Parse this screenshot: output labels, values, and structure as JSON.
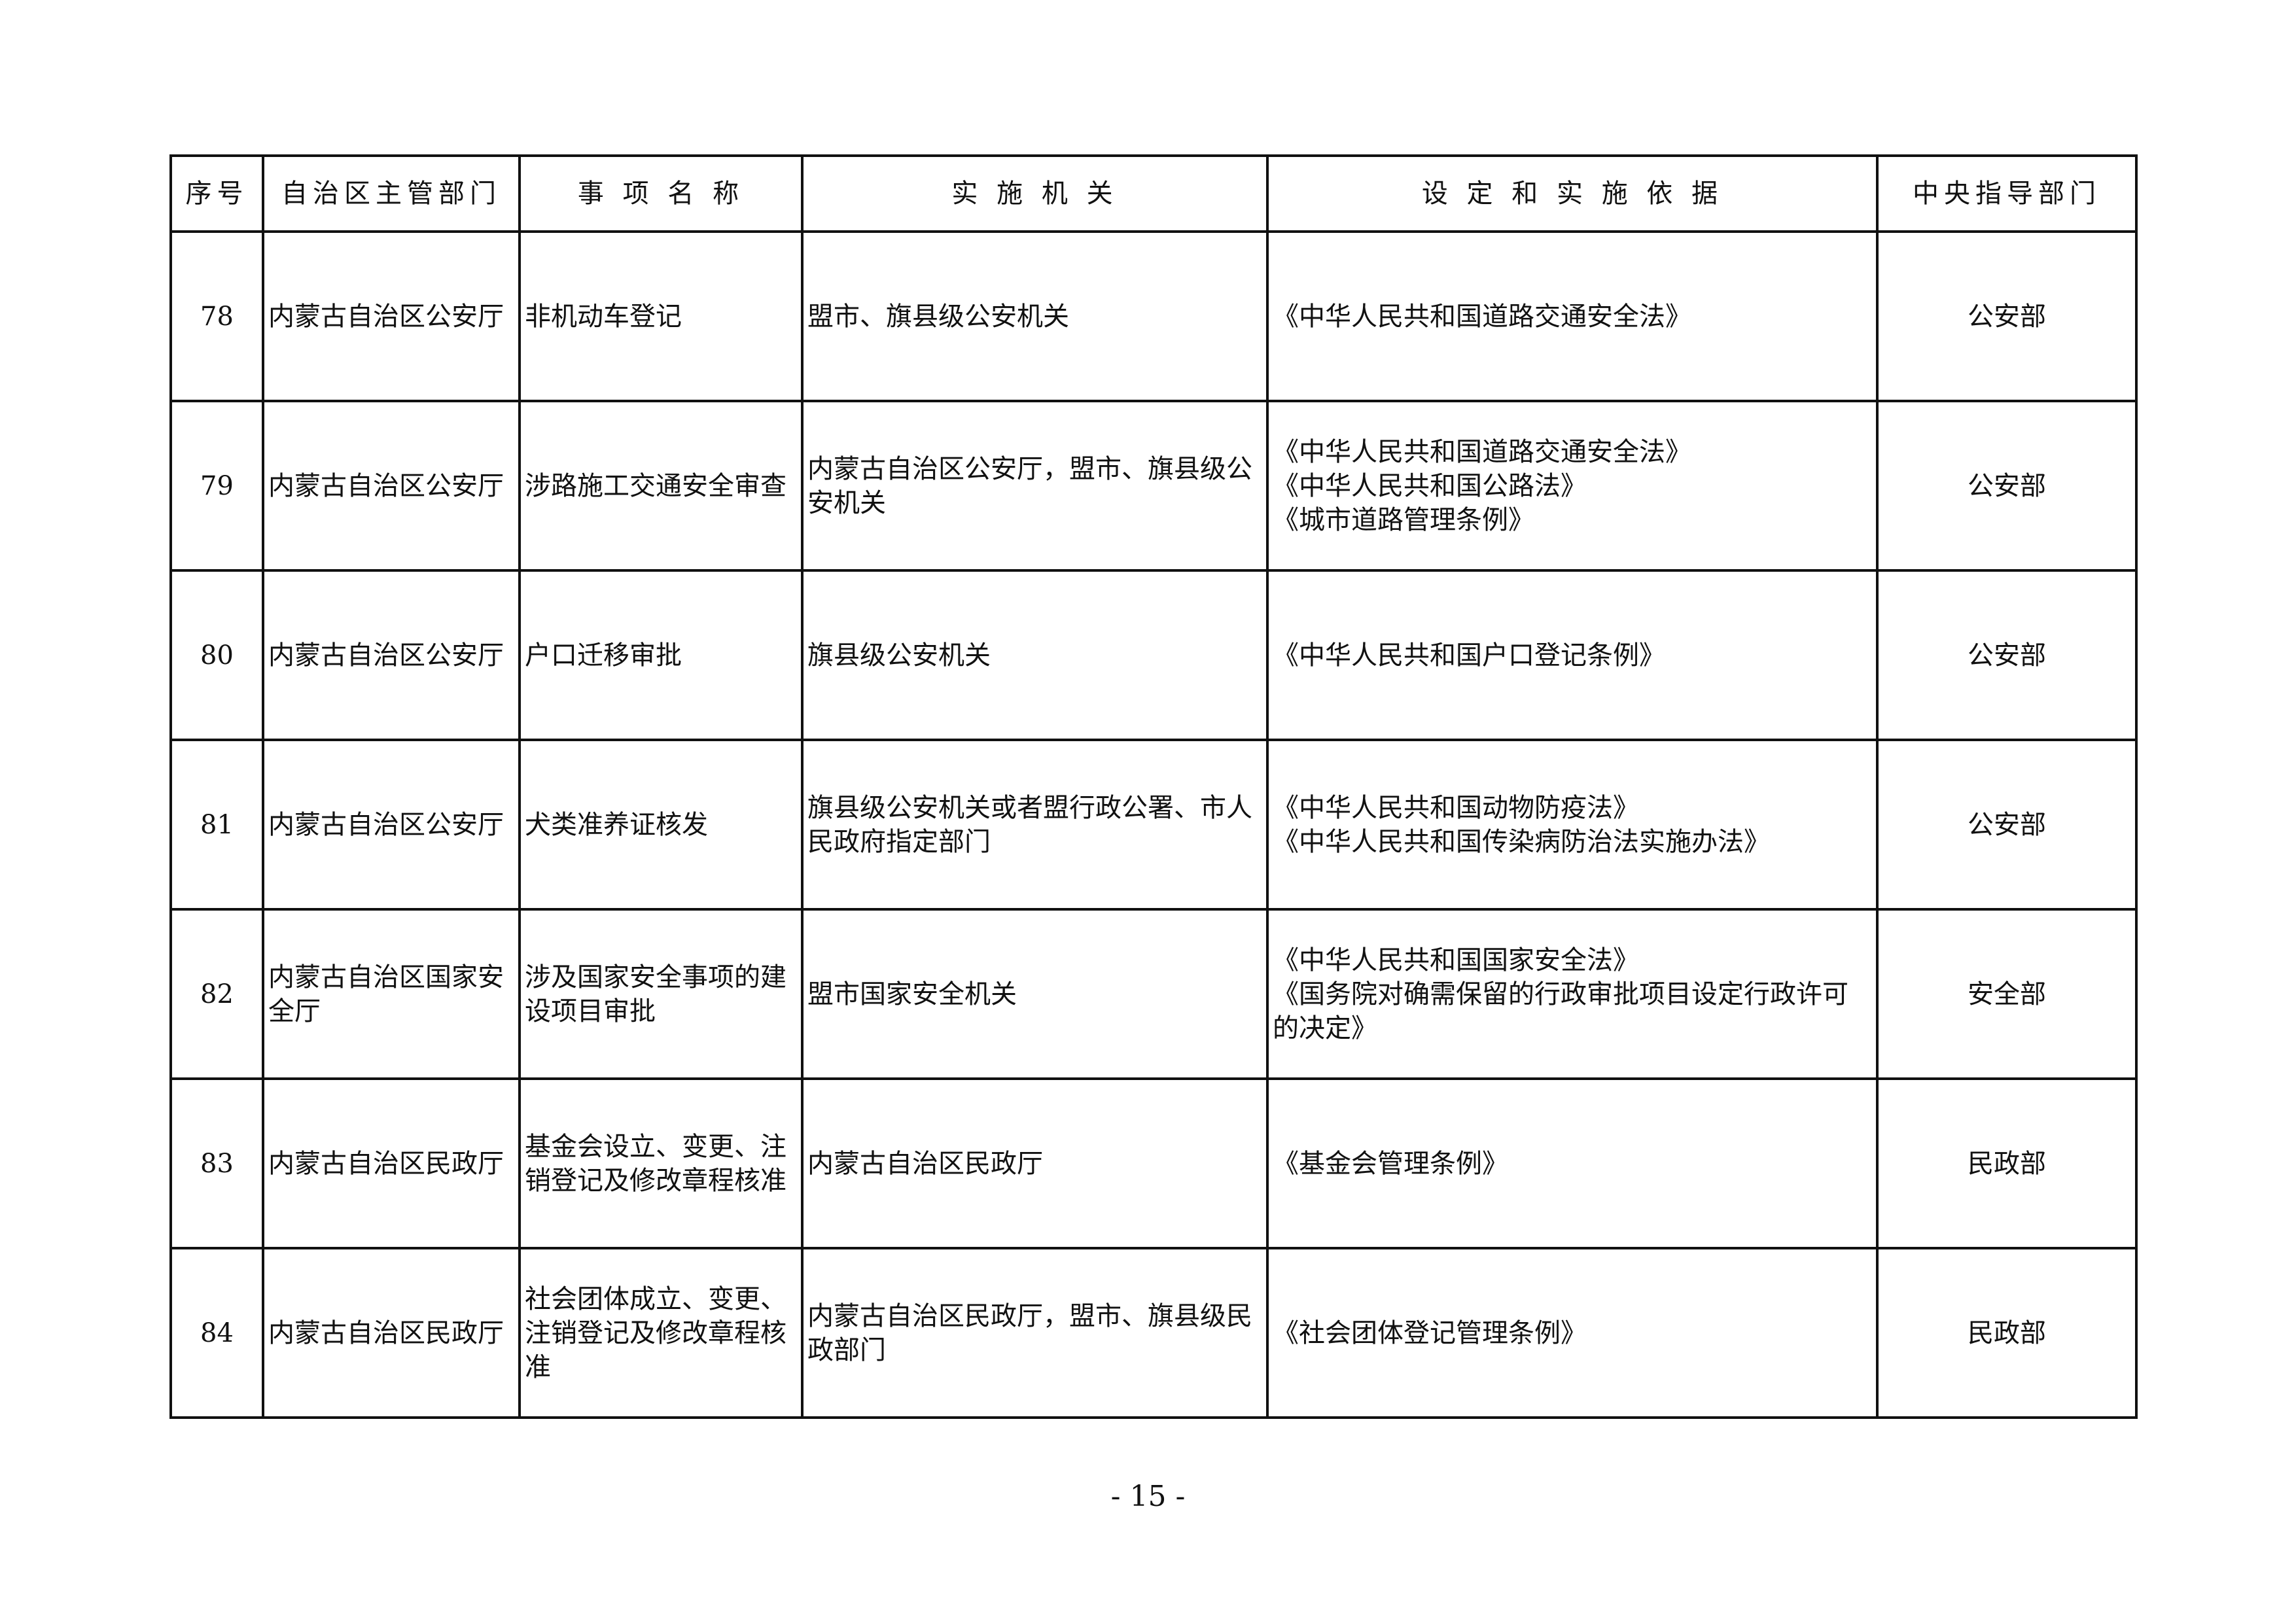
{
  "table": {
    "headers": [
      "序号",
      "自治区主管部门",
      "事 项 名 称",
      "实 施 机 关",
      "设 定 和 实 施 依 据",
      "中央指导部门"
    ],
    "rows": [
      {
        "no": "78",
        "dept": "内蒙古自治区公安厅",
        "item": "非机动车登记",
        "agency": "盟市、旗县级公安机关",
        "basis": [
          "《中华人民共和国道路交通安全法》"
        ],
        "central": "公安部"
      },
      {
        "no": "79",
        "dept": "内蒙古自治区公安厅",
        "item": "涉路施工交通安全审查",
        "agency": "内蒙古自治区公安厅，盟市、旗县级公安机关",
        "basis": [
          "《中华人民共和国道路交通安全法》",
          "《中华人民共和国公路法》",
          "《城市道路管理条例》"
        ],
        "central": "公安部"
      },
      {
        "no": "80",
        "dept": "内蒙古自治区公安厅",
        "item": "户口迁移审批",
        "agency": "旗县级公安机关",
        "basis": [
          "《中华人民共和国户口登记条例》"
        ],
        "central": "公安部"
      },
      {
        "no": "81",
        "dept": "内蒙古自治区公安厅",
        "item": "犬类准养证核发",
        "agency": "旗县级公安机关或者盟行政公署、市人民政府指定部门",
        "basis": [
          "《中华人民共和国动物防疫法》",
          "《中华人民共和国传染病防治法实施办法》"
        ],
        "central": "公安部"
      },
      {
        "no": "82",
        "dept": "内蒙古自治区国家安全厅",
        "item": "涉及国家安全事项的建设项目审批",
        "agency": "盟市国家安全机关",
        "basis": [
          "《中华人民共和国国家安全法》",
          "《国务院对确需保留的行政审批项目设定行政许可的决定》"
        ],
        "central": "安全部"
      },
      {
        "no": "83",
        "dept": "内蒙古自治区民政厅",
        "item": "基金会设立、变更、注销登记及修改章程核准",
        "agency": "内蒙古自治区民政厅",
        "basis": [
          "《基金会管理条例》"
        ],
        "central": "民政部"
      },
      {
        "no": "84",
        "dept": "内蒙古自治区民政厅",
        "item": "社会团体成立、变更、注销登记及修改章程核准",
        "agency": "内蒙古自治区民政厅，盟市、旗县级民政部门",
        "basis": [
          "《社会团体登记管理条例》"
        ],
        "central": "民政部"
      }
    ]
  },
  "footer": {
    "page_number": "- 15 -"
  }
}
